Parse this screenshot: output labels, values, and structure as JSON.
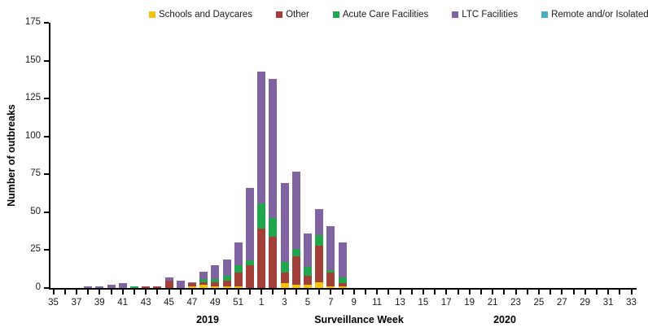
{
  "chart_data": {
    "type": "stacked-bar",
    "title": "",
    "ylabel": "Number of outbreaks",
    "xlabel": "Surveillance Week",
    "ylim": [
      0,
      175
    ],
    "yticks": [
      0,
      25,
      50,
      75,
      100,
      125,
      150,
      175
    ],
    "grid": false,
    "legend_position": "top",
    "axis_color": "#000000",
    "categories": [
      "35",
      "36",
      "37",
      "38",
      "39",
      "40",
      "41",
      "42",
      "43",
      "44",
      "45",
      "46",
      "47",
      "48",
      "49",
      "50",
      "51",
      "52",
      "1",
      "2",
      "3",
      "4",
      "5",
      "6",
      "7",
      "8",
      "9",
      "10",
      "11",
      "12",
      "13",
      "14",
      "15",
      "16",
      "17",
      "18",
      "19",
      "20",
      "21",
      "22",
      "23",
      "24",
      "25",
      "26",
      "27",
      "28",
      "29",
      "30",
      "31",
      "32",
      "33"
    ],
    "tick_label_rule": "labels shown for odd-numbered weeks only",
    "year_labels": [
      {
        "text": "2019"
      },
      {
        "text": "2020"
      }
    ],
    "series": [
      {
        "name": "Schools and Daycares",
        "color": "#F2C211",
        "values": [
          0,
          0,
          0,
          0,
          0,
          0,
          0,
          0,
          0,
          0,
          0,
          0,
          1,
          2,
          1,
          1,
          1,
          0,
          0,
          0,
          3,
          2,
          2,
          4,
          1,
          1,
          0,
          0,
          0,
          0,
          0,
          0,
          0,
          0,
          0,
          0,
          0,
          0,
          0,
          0,
          0,
          0,
          0,
          0,
          0,
          0,
          0,
          0,
          0,
          0,
          0
        ]
      },
      {
        "name": "Other",
        "color": "#A23F39",
        "values": [
          0,
          0,
          0,
          0,
          0,
          0,
          0,
          0,
          1,
          1,
          5,
          0,
          2,
          2,
          3,
          4,
          9,
          15,
          39,
          34,
          7,
          19,
          6,
          24,
          9,
          2,
          0,
          0,
          0,
          0,
          0,
          0,
          0,
          0,
          0,
          0,
          0,
          0,
          0,
          0,
          0,
          0,
          0,
          0,
          0,
          0,
          0,
          0,
          0,
          0,
          0
        ]
      },
      {
        "name": "Acute Care Facilities",
        "color": "#21A54D",
        "values": [
          0,
          0,
          0,
          0,
          0,
          0,
          0,
          1,
          0,
          0,
          0,
          0,
          0,
          2,
          2,
          3,
          5,
          3,
          17,
          12,
          7,
          5,
          6,
          7,
          2,
          4,
          0,
          0,
          0,
          0,
          0,
          0,
          0,
          0,
          0,
          0,
          0,
          0,
          0,
          0,
          0,
          0,
          0,
          0,
          0,
          0,
          0,
          0,
          0,
          0,
          0
        ]
      },
      {
        "name": "LTC Facilities",
        "color": "#8064A2",
        "values": [
          0,
          0,
          0,
          1,
          1,
          2,
          3,
          0,
          0,
          0,
          2,
          5,
          1,
          5,
          9,
          11,
          15,
          48,
          87,
          92,
          52,
          51,
          22,
          17,
          29,
          23,
          0,
          0,
          0,
          0,
          0,
          0,
          0,
          0,
          0,
          0,
          0,
          0,
          0,
          0,
          0,
          0,
          0,
          0,
          0,
          0,
          0,
          0,
          0,
          0,
          0
        ]
      },
      {
        "name": "Remote and/or Isolated Communities",
        "color": "#4BACC6",
        "values": [
          0,
          0,
          0,
          0,
          0,
          0,
          0,
          0,
          0,
          0,
          0,
          0,
          0,
          0,
          0,
          0,
          0,
          0,
          0,
          0,
          0,
          0,
          0,
          0,
          0,
          0,
          0,
          0,
          0,
          0,
          0,
          0,
          0,
          0,
          0,
          0,
          0,
          0,
          0,
          0,
          0,
          0,
          0,
          0,
          0,
          0,
          0,
          0,
          0,
          0,
          0
        ]
      }
    ]
  }
}
